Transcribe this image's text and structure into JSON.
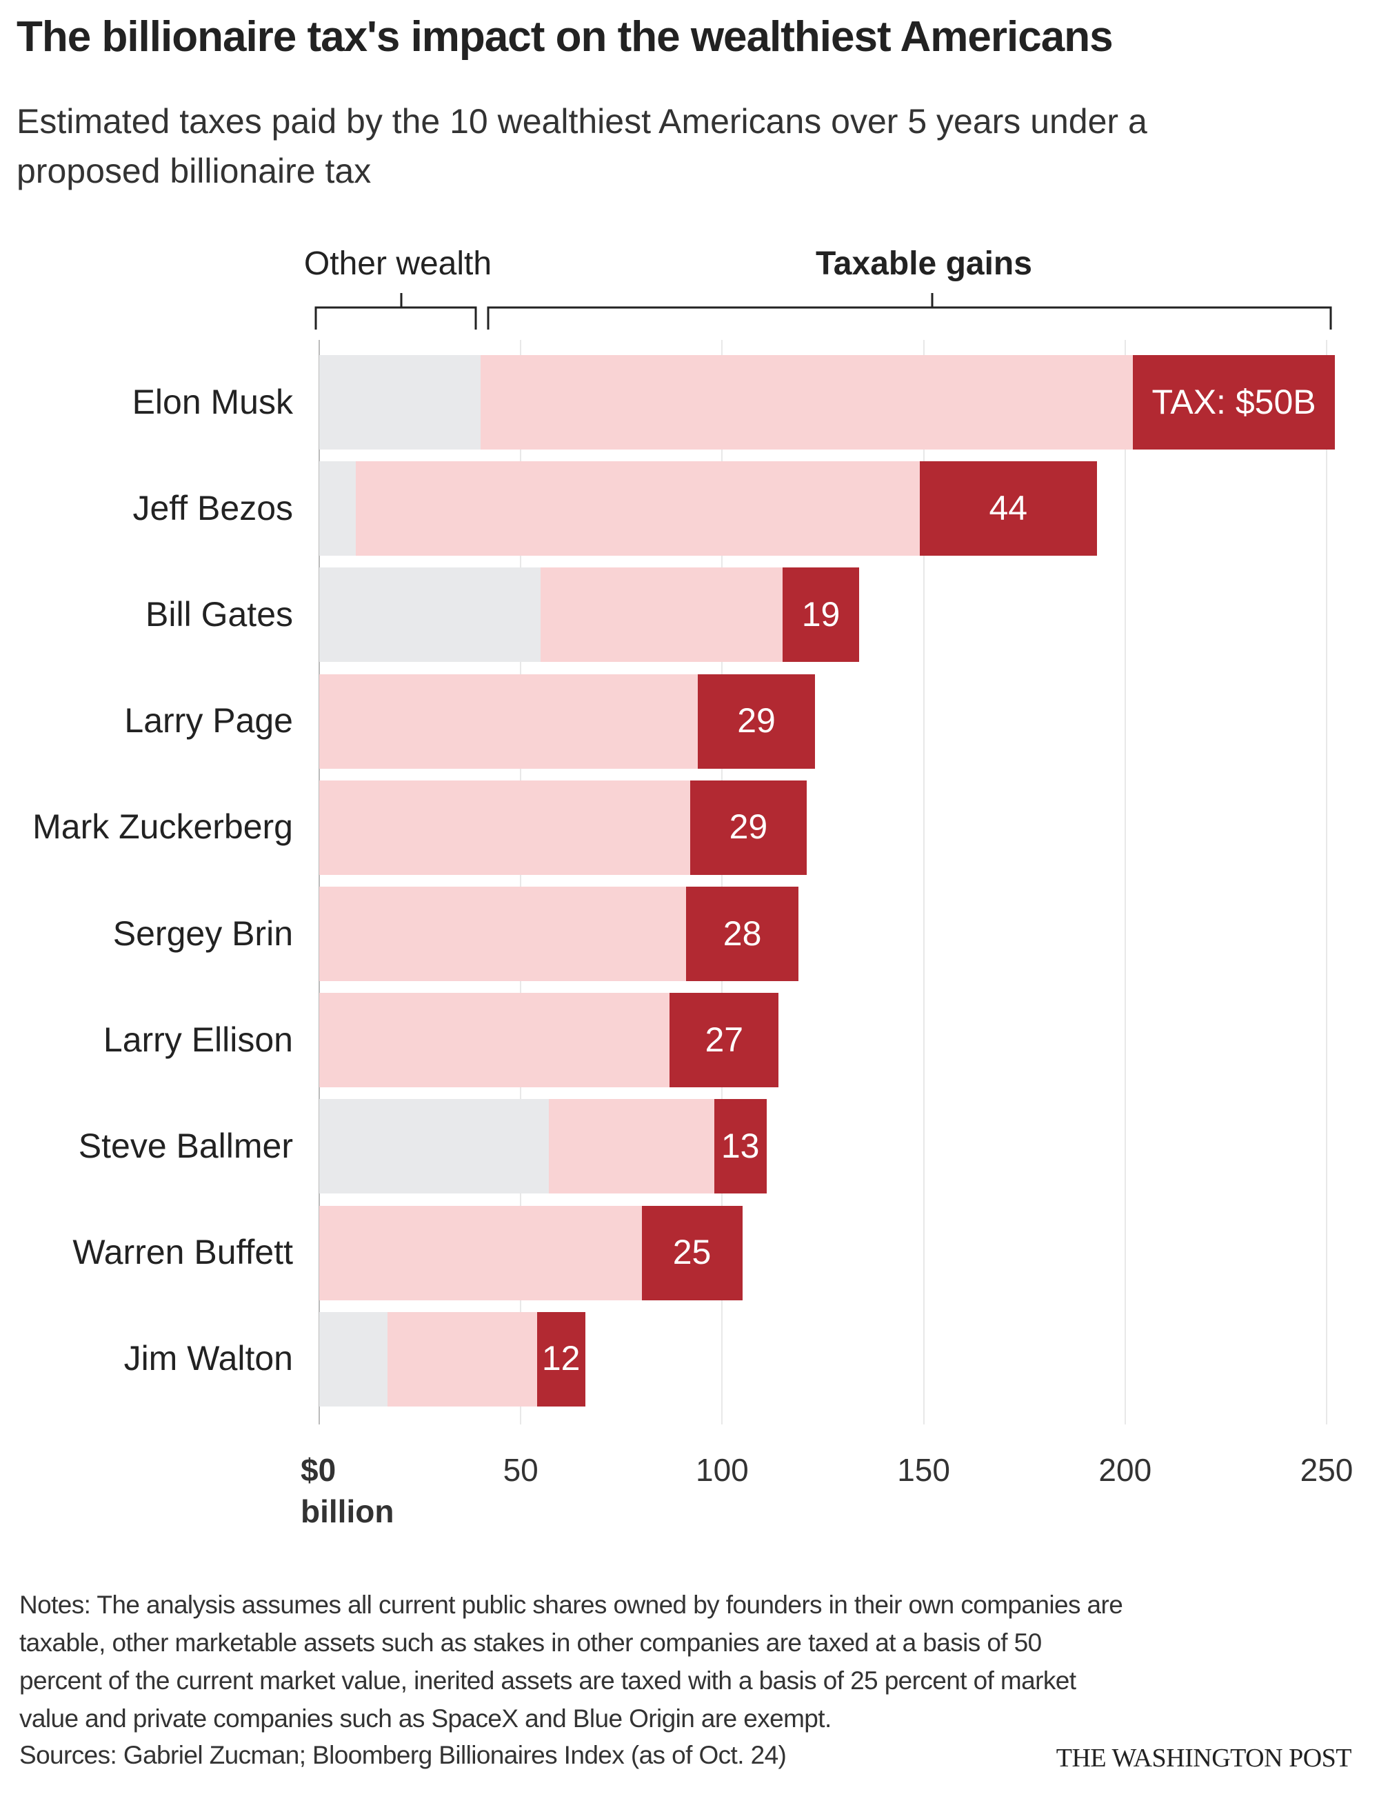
{
  "title": "The billionaire tax's impact on the wealthiest Americans",
  "subtitle": "Estimated taxes paid by the 10 wealthiest Americans over 5 years under a proposed billionaire tax",
  "chart_data": {
    "type": "bar",
    "orientation": "horizontal-stacked",
    "group_labels": {
      "other": "Other wealth",
      "taxable": "Taxable gains"
    },
    "categories": [
      "Elon Musk",
      "Jeff Bezos",
      "Bill Gates",
      "Larry Page",
      "Mark Zuckerberg",
      "Sergey Brin",
      "Larry Ellison",
      "Steve Ballmer",
      "Warren Buffett",
      "Jim Walton"
    ],
    "series": [
      {
        "key": "other",
        "values": [
          40,
          9,
          55,
          0,
          0,
          0,
          0,
          57,
          0,
          17
        ],
        "color": "#e8e9eb"
      },
      {
        "key": "gains",
        "values": [
          162,
          140,
          60,
          94,
          92,
          91,
          87,
          41,
          80,
          37
        ],
        "color": "#f9d3d4"
      },
      {
        "key": "tax",
        "values": [
          50,
          44,
          19,
          29,
          29,
          28,
          27,
          13,
          25,
          12
        ],
        "color": "#b22932"
      }
    ],
    "tax_labels": [
      "TAX: $50B",
      "44",
      "19",
      "29",
      "29",
      "28",
      "27",
      "13",
      "25",
      "12"
    ],
    "xlim": [
      0,
      250
    ],
    "x_ticks": [
      "$0",
      "50",
      "100",
      "150",
      "200",
      "250"
    ],
    "x_unit": "billion",
    "grid": true
  },
  "notes": [
    "Notes: The analysis assumes all current public shares owned by founders in their own companies are",
    "taxable, other marketable assets such as stakes in other companies are taxed at a basis of 50",
    "percent of the current market value, inerited assets are taxed with a basis of 25 percent of market",
    "value and private companies such as SpaceX and Blue Origin are exempt."
  ],
  "sources": "Sources: Gabriel Zucman; Bloomberg Billionaires Index (as of Oct. 24)",
  "credit": "THE WASHINGTON POST"
}
